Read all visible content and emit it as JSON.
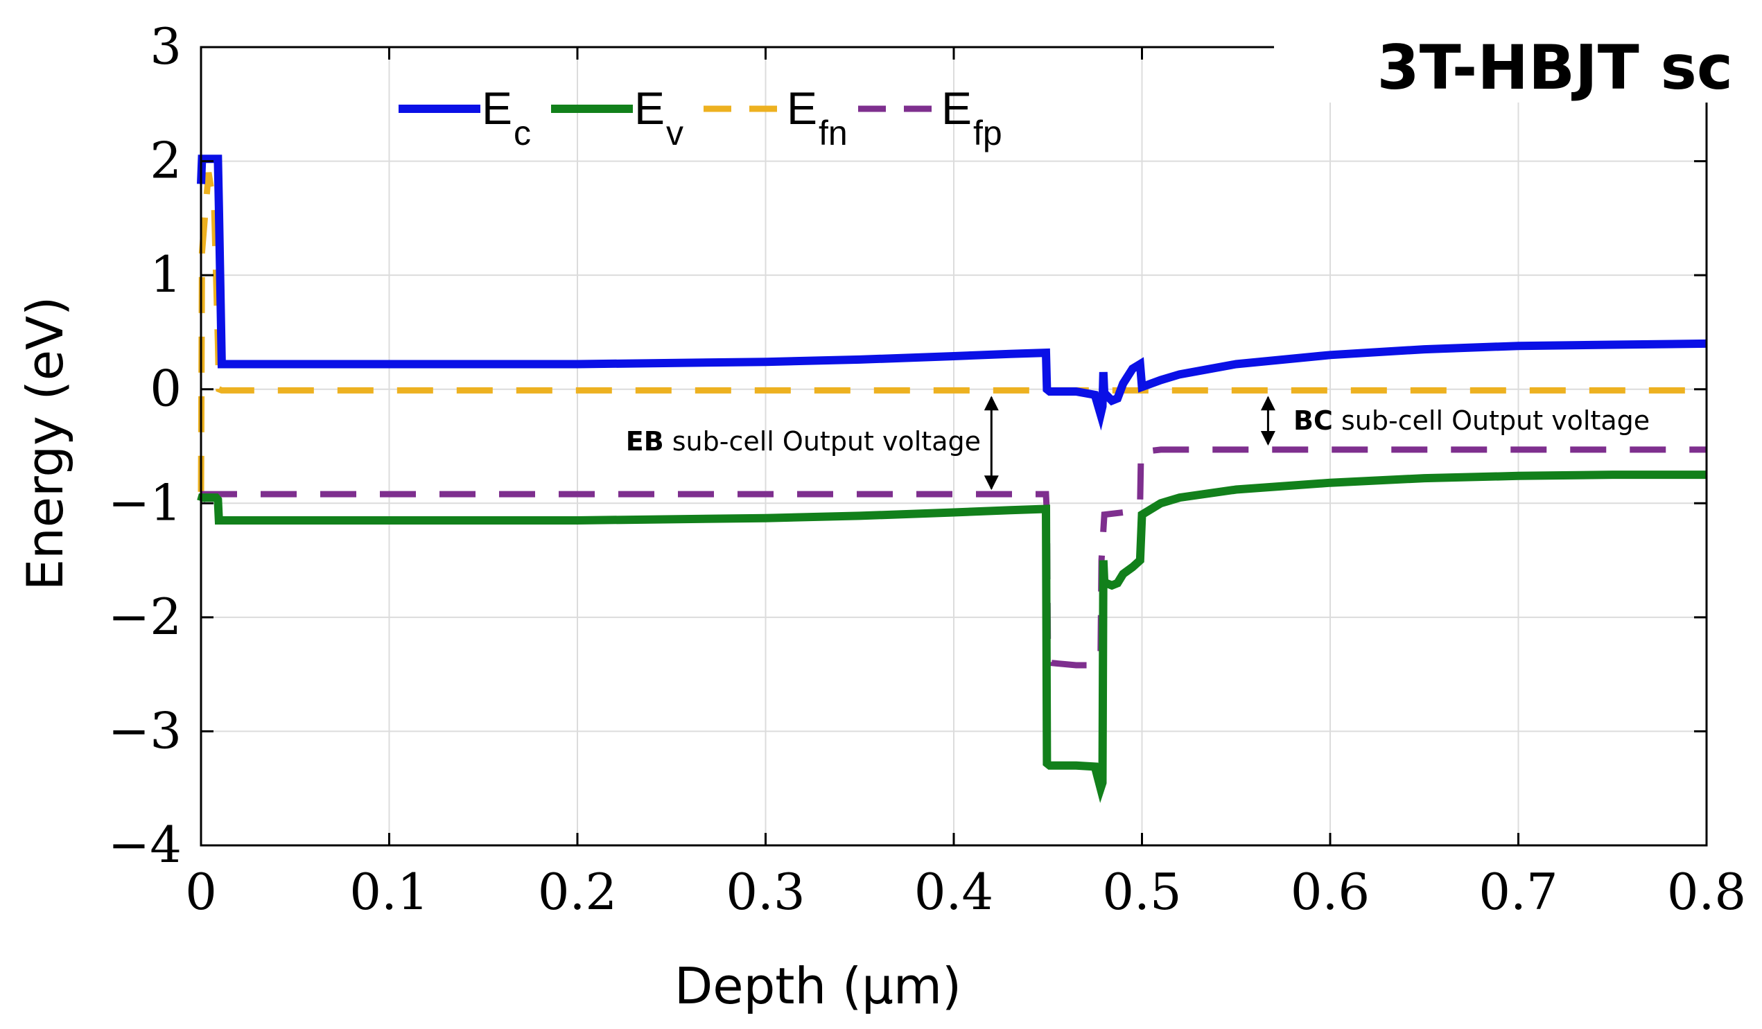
{
  "chart_data": {
    "type": "line",
    "title": "3T-HBJT sc",
    "xlabel": "Depth (µm)",
    "ylabel": "Energy (eV)",
    "xlim": [
      0,
      0.8
    ],
    "ylim": [
      -4,
      3
    ],
    "xticks": [
      0,
      0.1,
      0.2,
      0.3,
      0.4,
      0.5,
      0.6,
      0.7,
      0.8
    ],
    "xtick_labels": [
      "0",
      "0.1",
      "0.2",
      "0.3",
      "0.4",
      "0.5",
      "0.6",
      "0.7",
      "0.8"
    ],
    "yticks": [
      3,
      2,
      1,
      0,
      -1,
      -2,
      -3,
      -4
    ],
    "ytick_labels": [
      "3",
      "2",
      "1",
      "0",
      "−1",
      "−2",
      "−3",
      "−4"
    ],
    "grid": true,
    "legend_position": "top-left",
    "series": [
      {
        "name": "E",
        "sub": "c",
        "color": "#0a10e6",
        "style": "solid",
        "x": [
          0,
          0.0005,
          0.009,
          0.0095,
          0.011,
          0.05,
          0.1,
          0.2,
          0.3,
          0.35,
          0.4,
          0.43,
          0.449,
          0.4495,
          0.451,
          0.465,
          0.475,
          0.478,
          0.479,
          0.4795,
          0.48,
          0.481,
          0.484,
          0.487,
          0.49,
          0.495,
          0.499,
          0.5,
          0.51,
          0.52,
          0.55,
          0.6,
          0.65,
          0.7,
          0.75,
          0.8
        ],
        "values": [
          1.8,
          2.02,
          2.02,
          1.6,
          0.22,
          0.22,
          0.22,
          0.22,
          0.24,
          0.26,
          0.29,
          0.31,
          0.32,
          0.0,
          -0.02,
          -0.02,
          -0.05,
          -0.22,
          -0.15,
          0.15,
          -0.05,
          -0.05,
          -0.1,
          -0.08,
          0.05,
          0.18,
          0.22,
          0.02,
          0.08,
          0.13,
          0.22,
          0.3,
          0.35,
          0.38,
          0.39,
          0.4
        ]
      },
      {
        "name": "E",
        "sub": "v",
        "color": "#12801b",
        "style": "solid",
        "x": [
          0,
          0.0005,
          0.008,
          0.009,
          0.0095,
          0.011,
          0.05,
          0.1,
          0.2,
          0.3,
          0.35,
          0.4,
          0.43,
          0.449,
          0.4495,
          0.451,
          0.465,
          0.475,
          0.478,
          0.479,
          0.4795,
          0.48,
          0.481,
          0.484,
          0.487,
          0.49,
          0.495,
          0.499,
          0.5,
          0.51,
          0.52,
          0.55,
          0.6,
          0.65,
          0.7,
          0.75,
          0.8
        ],
        "values": [
          -0.98,
          -0.95,
          -0.95,
          -0.97,
          -1.15,
          -1.15,
          -1.15,
          -1.15,
          -1.15,
          -1.13,
          -1.11,
          -1.08,
          -1.06,
          -1.05,
          -3.28,
          -3.3,
          -3.3,
          -3.31,
          -3.5,
          -3.45,
          -1.5,
          -1.7,
          -1.7,
          -1.72,
          -1.7,
          -1.62,
          -1.56,
          -1.5,
          -1.1,
          -1.0,
          -0.95,
          -0.88,
          -0.82,
          -0.78,
          -0.76,
          -0.75,
          -0.75
        ]
      },
      {
        "name": "E",
        "sub": "fn",
        "color": "#edb120",
        "style": "dashed",
        "x": [
          0,
          0.0005,
          0.004,
          0.007,
          0.009,
          0.0095,
          0.011,
          0.1,
          0.2,
          0.3,
          0.4,
          0.5,
          0.6,
          0.7,
          0.8
        ],
        "values": [
          -0.9,
          1.2,
          1.9,
          1.6,
          0.4,
          0.0,
          -0.01,
          -0.01,
          -0.01,
          -0.01,
          -0.01,
          -0.01,
          -0.01,
          -0.01,
          -0.01
        ]
      },
      {
        "name": "E",
        "sub": "fp",
        "color": "#7e2f8e",
        "style": "dashed",
        "x": [
          0,
          0.1,
          0.2,
          0.3,
          0.4,
          0.449,
          0.4495,
          0.45,
          0.452,
          0.465,
          0.475,
          0.478,
          0.4785,
          0.48,
          0.49,
          0.495,
          0.499,
          0.4995,
          0.51,
          0.55,
          0.6,
          0.7,
          0.8
        ],
        "values": [
          -0.92,
          -0.92,
          -0.92,
          -0.92,
          -0.92,
          -0.92,
          -1.1,
          -2.3,
          -2.4,
          -2.42,
          -2.42,
          -2.3,
          -1.5,
          -1.1,
          -1.08,
          -1.05,
          -1.0,
          -0.55,
          -0.53,
          -0.53,
          -0.53,
          -0.53,
          -0.53
        ]
      }
    ],
    "annotations": [
      {
        "bold": "EB",
        "text": " sub-cell Output voltage",
        "x": 0.42,
        "y_from": -0.01,
        "y_to": -0.92
      },
      {
        "bold": "BC",
        "text": " sub-cell Output voltage",
        "x": 0.567,
        "y_from": -0.01,
        "y_to": -0.53
      }
    ]
  }
}
